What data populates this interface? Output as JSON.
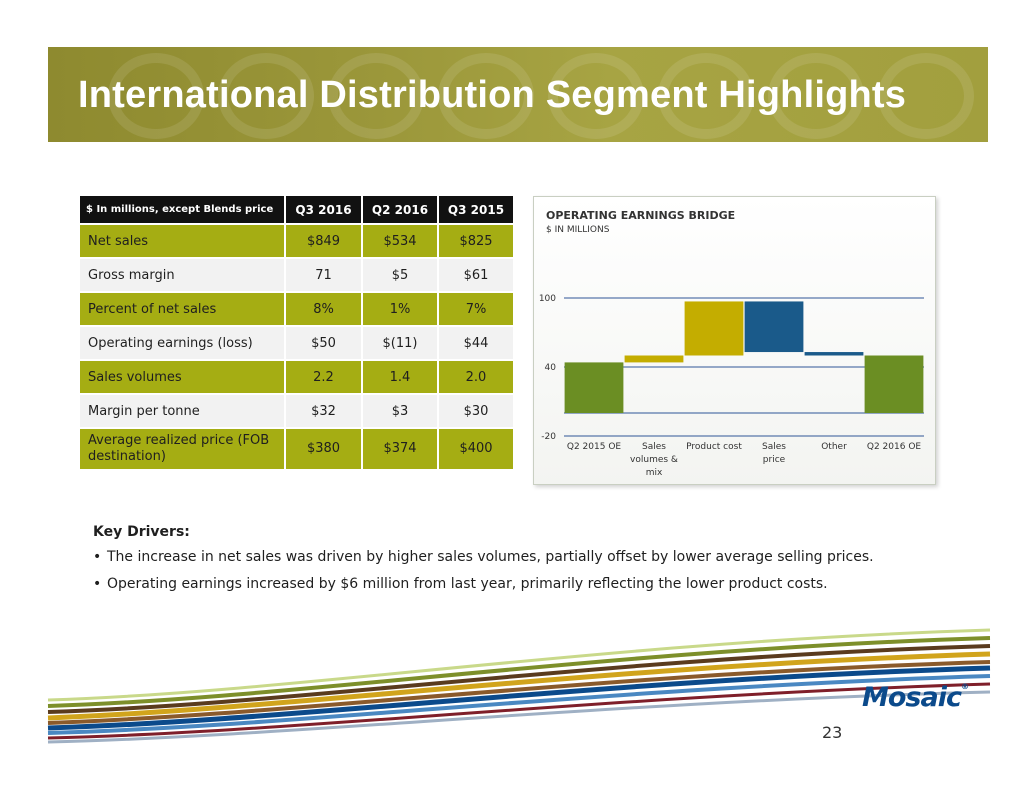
{
  "title": "International Distribution Segment Highlights",
  "table": {
    "headers": [
      "$ In millions, except Blends price",
      "Q3 2016",
      "Q2 2016",
      "Q3 2015"
    ],
    "rows": [
      {
        "label": "Net sales",
        "values": [
          "$849",
          "$534",
          "$825"
        ]
      },
      {
        "label": "Gross margin",
        "values": [
          "71",
          "$5",
          "$61"
        ]
      },
      {
        "label": "Percent of net sales",
        "values": [
          "8%",
          "1%",
          "7%"
        ]
      },
      {
        "label": "Operating earnings (loss)",
        "values": [
          "$50",
          "$(11)",
          "$44"
        ]
      },
      {
        "label": "Sales volumes",
        "values": [
          "2.2",
          "1.4",
          "2.0"
        ]
      },
      {
        "label": "Margin per tonne",
        "values": [
          "$32",
          "$3",
          "$30"
        ]
      },
      {
        "label": "Average realized price (FOB destination)",
        "values": [
          "$380",
          "$374",
          "$400"
        ]
      }
    ]
  },
  "chart_data": {
    "type": "bar",
    "subtype": "waterfall",
    "title": "OPERATING EARNINGS BRIDGE",
    "subtitle": "$ IN MILLIONS",
    "ylim": [
      -20,
      100
    ],
    "yticks": [
      -20,
      40,
      100
    ],
    "ytick_labels": [
      "-20",
      "40",
      "100"
    ],
    "categories": [
      "Q2 2015 OE",
      "Sales volumes & mix",
      "Product cost",
      "Sales price",
      "Other",
      "Q2 2016 OE"
    ],
    "category_lines": [
      [
        "Q2 2015 OE"
      ],
      [
        "Sales",
        "volumes &",
        "mix"
      ],
      [
        "Product cost"
      ],
      [
        "Sales",
        "price"
      ],
      [
        "Other"
      ],
      [
        "Q2 2016 OE"
      ]
    ],
    "bars": [
      {
        "start": 0,
        "end": 44
      },
      {
        "start": 44,
        "end": 50
      },
      {
        "start": 50,
        "end": 97
      },
      {
        "start": 97,
        "end": 53
      },
      {
        "start": 53,
        "end": 50
      },
      {
        "start": 0,
        "end": 50
      }
    ],
    "colors": [
      "#6b8e23",
      "#c4ad00",
      "#c4ad00",
      "#1a5a8a",
      "#1a5a8a",
      "#6b8e23"
    ],
    "grid_lines": [
      100,
      40,
      0,
      -20
    ],
    "line_color": "#2f5597"
  },
  "drivers": {
    "heading": "Key  Drivers:",
    "items": [
      "The increase in net sales was driven by higher sales volumes, partially offset by lower average selling prices.",
      "Operating earnings increased by $6 million from last year, primarily reflecting the lower product costs."
    ]
  },
  "logo": {
    "text": "Mosaic",
    "mark": "®"
  },
  "page_number": "23"
}
